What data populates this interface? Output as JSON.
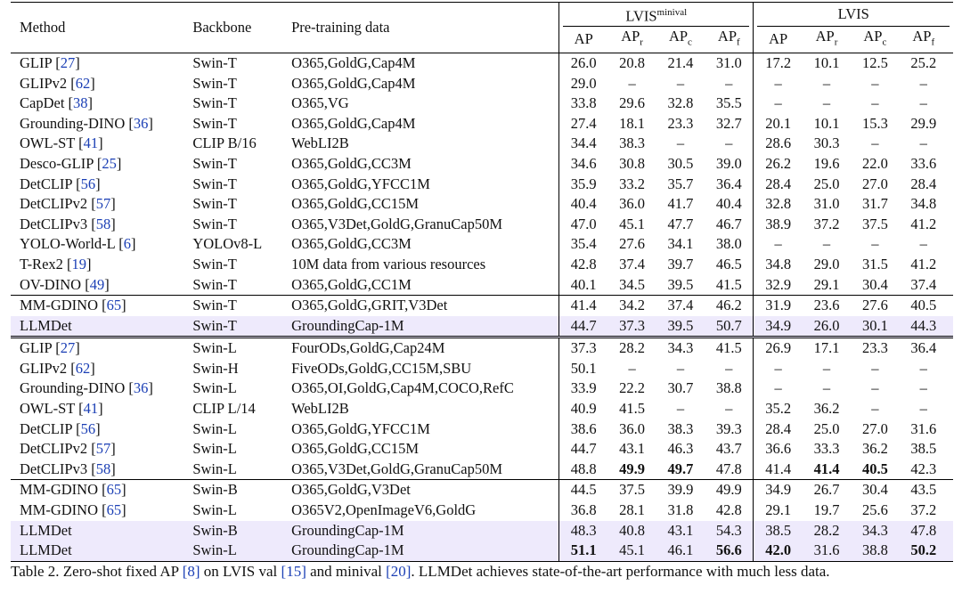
{
  "headers": {
    "method": "Method",
    "backbone": "Backbone",
    "pretraining": "Pre-training data",
    "group1_base": "LVIS",
    "group1_sup": "minival",
    "group2": "LVIS",
    "ap": "AP",
    "apr": "r",
    "apc": "c",
    "apf": "f"
  },
  "groups": [
    {
      "rows": [
        {
          "method": "GLIP",
          "cite": "27",
          "backbone": "Swin-T",
          "data": "O365,GoldG,Cap4M",
          "vals": [
            "26.0",
            "20.8",
            "21.4",
            "31.0",
            "17.2",
            "10.1",
            "12.5",
            "25.2"
          ],
          "bold": []
        },
        {
          "method": "GLIPv2",
          "cite": "62",
          "backbone": "Swin-T",
          "data": "O365,GoldG,Cap4M",
          "vals": [
            "29.0",
            "–",
            "–",
            "–",
            "–",
            "–",
            "–",
            "–"
          ],
          "bold": []
        },
        {
          "method": "CapDet",
          "cite": "38",
          "backbone": "Swin-T",
          "data": "O365,VG",
          "vals": [
            "33.8",
            "29.6",
            "32.8",
            "35.5",
            "–",
            "–",
            "–",
            "–"
          ],
          "bold": []
        },
        {
          "method": "Grounding-DINO",
          "cite": "36",
          "backbone": "Swin-T",
          "data": "O365,GoldG,Cap4M",
          "vals": [
            "27.4",
            "18.1",
            "23.3",
            "32.7",
            "20.1",
            "10.1",
            "15.3",
            "29.9"
          ],
          "bold": []
        },
        {
          "method": "OWL-ST",
          "cite": "41",
          "backbone": "CLIP B/16",
          "data": "WebLI2B",
          "vals": [
            "34.4",
            "38.3",
            "–",
            "–",
            "28.6",
            "30.3",
            "–",
            "–"
          ],
          "bold": []
        },
        {
          "method": "Desco-GLIP",
          "cite": "25",
          "backbone": "Swin-T",
          "data": "O365,GoldG,CC3M",
          "vals": [
            "34.6",
            "30.8",
            "30.5",
            "39.0",
            "26.2",
            "19.6",
            "22.0",
            "33.6"
          ],
          "bold": []
        },
        {
          "method": "DetCLIP",
          "cite": "56",
          "backbone": "Swin-T",
          "data": "O365,GoldG,YFCC1M",
          "vals": [
            "35.9",
            "33.2",
            "35.7",
            "36.4",
            "28.4",
            "25.0",
            "27.0",
            "28.4"
          ],
          "bold": []
        },
        {
          "method": "DetCLIPv2",
          "cite": "57",
          "backbone": "Swin-T",
          "data": "O365,GoldG,CC15M",
          "vals": [
            "40.4",
            "36.0",
            "41.7",
            "40.4",
            "32.8",
            "31.0",
            "31.7",
            "34.8"
          ],
          "bold": []
        },
        {
          "method": "DetCLIPv3",
          "cite": "58",
          "backbone": "Swin-T",
          "data": "O365,V3Det,GoldG,GranuCap50M",
          "vals": [
            "47.0",
            "45.1",
            "47.7",
            "46.7",
            "38.9",
            "37.2",
            "37.5",
            "41.2"
          ],
          "bold": []
        },
        {
          "method": "YOLO-World-L",
          "cite": "6",
          "backbone": "YOLOv8-L",
          "data": "O365,GoldG,CC3M",
          "vals": [
            "35.4",
            "27.6",
            "34.1",
            "38.0",
            "–",
            "–",
            "–",
            "–"
          ],
          "bold": []
        },
        {
          "method": "T-Rex2",
          "cite": "19",
          "backbone": "Swin-T",
          "data": "10M data from various resources",
          "vals": [
            "42.8",
            "37.4",
            "39.7",
            "46.5",
            "34.8",
            "29.0",
            "31.5",
            "41.2"
          ],
          "bold": []
        },
        {
          "method": "OV-DINO",
          "cite": "49",
          "backbone": "Swin-T",
          "data": "O365,GoldG,CC1M",
          "vals": [
            "40.1",
            "34.5",
            "39.5",
            "41.5",
            "32.9",
            "29.1",
            "30.4",
            "37.4"
          ],
          "bold": []
        }
      ]
    },
    {
      "rows": [
        {
          "method": "MM-GDINO",
          "cite": "65",
          "backbone": "Swin-T",
          "data": "O365,GoldG,GRIT,V3Det",
          "vals": [
            "41.4",
            "34.2",
            "37.4",
            "46.2",
            "31.9",
            "23.6",
            "27.6",
            "40.5"
          ],
          "bold": []
        },
        {
          "method": "LLMDet",
          "cite": "",
          "backbone": "Swin-T",
          "data": "GroundingCap-1M",
          "vals": [
            "44.7",
            "37.3",
            "39.5",
            "50.7",
            "34.9",
            "26.0",
            "30.1",
            "44.3"
          ],
          "bold": [],
          "highlight": true
        }
      ]
    },
    {
      "rows": [
        {
          "method": "GLIP",
          "cite": "27",
          "backbone": "Swin-L",
          "data": "FourODs,GoldG,Cap24M",
          "vals": [
            "37.3",
            "28.2",
            "34.3",
            "41.5",
            "26.9",
            "17.1",
            "23.3",
            "36.4"
          ],
          "bold": []
        },
        {
          "method": "GLIPv2",
          "cite": "62",
          "backbone": "Swin-H",
          "data": "FiveODs,GoldG,CC15M,SBU",
          "vals": [
            "50.1",
            "–",
            "–",
            "–",
            "–",
            "–",
            "–",
            "–"
          ],
          "bold": []
        },
        {
          "method": "Grounding-DINO",
          "cite": "36",
          "backbone": "Swin-L",
          "data": "O365,OI,GoldG,Cap4M,COCO,RefC",
          "vals": [
            "33.9",
            "22.2",
            "30.7",
            "38.8",
            "–",
            "–",
            "–",
            "–"
          ],
          "bold": []
        },
        {
          "method": "OWL-ST",
          "cite": "41",
          "backbone": "CLIP L/14",
          "data": "WebLI2B",
          "vals": [
            "40.9",
            "41.5",
            "–",
            "–",
            "35.2",
            "36.2",
            "–",
            "–"
          ],
          "bold": []
        },
        {
          "method": "DetCLIP",
          "cite": "56",
          "backbone": "Swin-L",
          "data": "O365,GoldG,YFCC1M",
          "vals": [
            "38.6",
            "36.0",
            "38.3",
            "39.3",
            "28.4",
            "25.0",
            "27.0",
            "31.6"
          ],
          "bold": []
        },
        {
          "method": "DetCLIPv2",
          "cite": "57",
          "backbone": "Swin-L",
          "data": "O365,GoldG,CC15M",
          "vals": [
            "44.7",
            "43.1",
            "46.3",
            "43.7",
            "36.6",
            "33.3",
            "36.2",
            "38.5"
          ],
          "bold": []
        },
        {
          "method": "DetCLIPv3",
          "cite": "58",
          "backbone": "Swin-L",
          "data": "O365,V3Det,GoldG,GranuCap50M",
          "vals": [
            "48.8",
            "49.9",
            "49.7",
            "47.8",
            "41.4",
            "41.4",
            "40.5",
            "42.3"
          ],
          "bold": [
            1,
            2,
            5,
            6
          ]
        }
      ]
    },
    {
      "rows": [
        {
          "method": "MM-GDINO",
          "cite": "65",
          "backbone": "Swin-B",
          "data": "O365,GoldG,V3Det",
          "vals": [
            "44.5",
            "37.5",
            "39.9",
            "49.9",
            "34.9",
            "26.7",
            "30.4",
            "43.5"
          ],
          "bold": []
        },
        {
          "method": "MM-GDINO",
          "cite": "65",
          "backbone": "Swin-L",
          "data": "O365V2,OpenImageV6,GoldG",
          "vals": [
            "36.8",
            "28.1",
            "31.8",
            "42.8",
            "29.1",
            "19.7",
            "25.6",
            "37.2"
          ],
          "bold": []
        },
        {
          "method": "LLMDet",
          "cite": "",
          "backbone": "Swin-B",
          "data": "GroundingCap-1M",
          "vals": [
            "48.3",
            "40.8",
            "43.1",
            "54.3",
            "38.5",
            "28.2",
            "34.3",
            "47.8"
          ],
          "bold": [],
          "highlight": true
        },
        {
          "method": "LLMDet",
          "cite": "",
          "backbone": "Swin-L",
          "data": "GroundingCap-1M",
          "vals": [
            "51.1",
            "45.1",
            "46.1",
            "56.6",
            "42.0",
            "31.6",
            "38.8",
            "50.2"
          ],
          "bold": [
            0,
            3,
            4,
            7
          ],
          "highlight": true
        }
      ]
    }
  ],
  "caption": {
    "t1": "Table 2. Zero-shot fixed AP ",
    "r1": "[8]",
    "t2": " on LVIS val ",
    "r2": "[15]",
    "t3": " and minival ",
    "r3": "[20]",
    "t4": ". LLMDet achieves state-of-the-art performance with much less data."
  }
}
